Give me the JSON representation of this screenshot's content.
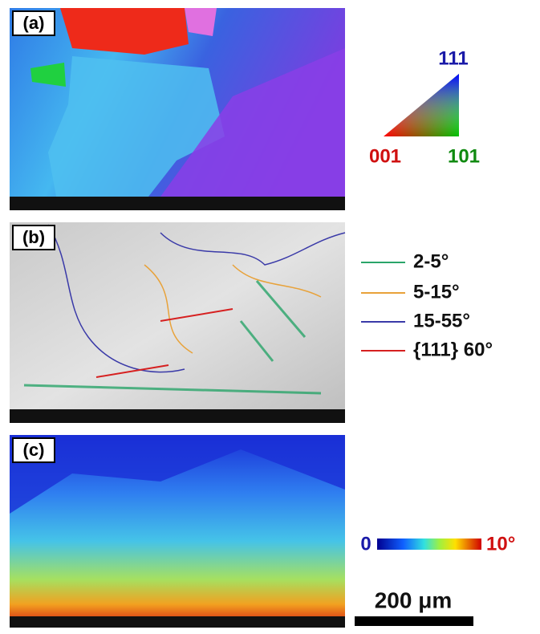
{
  "panels": [
    {
      "label": "(a)"
    },
    {
      "label": "(b)"
    },
    {
      "label": "(c)"
    }
  ],
  "ipf_legend": {
    "top": "111",
    "left": "001",
    "right": "101"
  },
  "boundary_legend": [
    "2-5°",
    "5-15°",
    "15-55°",
    "{111} 60°"
  ],
  "misorientation_scale": {
    "min": "0",
    "max": "10°"
  },
  "scale_bar": "200 μm"
}
